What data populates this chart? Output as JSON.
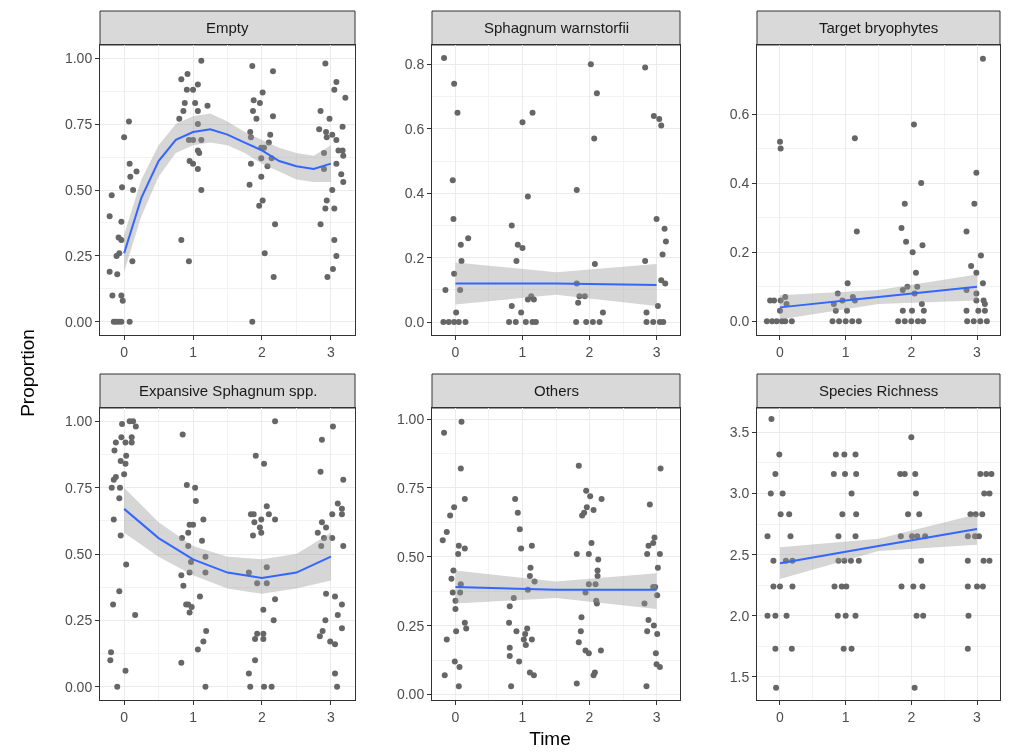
{
  "chart_data": [
    {
      "type": "scatter",
      "title": "Empty",
      "ylabel": "Proportion",
      "marker": "circle",
      "grid": true,
      "xlim": [
        -0.35,
        3.35
      ],
      "xticks": [
        0,
        1,
        2,
        3
      ],
      "ylim": [
        -0.05,
        1.05
      ],
      "yticks": [
        {
          "value": 0,
          "label": "0.00"
        },
        {
          "value": 0.25,
          "label": "0.25"
        },
        {
          "value": 0.5,
          "label": "0.50"
        },
        {
          "value": 0.75,
          "label": "0.75"
        },
        {
          "value": 1,
          "label": "1.00"
        }
      ],
      "series": [
        {
          "type": "scatter",
          "color": "#666666",
          "x": [
            -0.15,
            -0.12,
            -0.08,
            -0.04,
            0.08,
            -0.21,
            -0.18,
            -0.21,
            -0.17,
            -0.1,
            -0.11,
            -0.08,
            -0.04,
            -0.03,
            0,
            0.07,
            0.08,
            0.09,
            0.13,
            0.18,
            0.12,
            -0.07,
            -0.04,
            -0.02,
            -0.04,
            0.83,
            0.92,
            1.12,
            1.07,
            1,
            0.91,
            0.88,
            1.03,
            1.07,
            1.21,
            0.8,
            0.86,
            0.94,
            1,
            1.07,
            1.12,
            1.07,
            1.09,
            0.95,
            1,
            1.07,
            1.12,
            0.83,
            0.94,
            1.86,
            2.16,
            2.01,
            1.88,
            1.97,
            1.87,
            1.92,
            2.16,
            1.83,
            1.84,
            2.12,
            2.1,
            1.99,
            2.03,
            1.99,
            2.14,
            2.08,
            1.84,
            1.99,
            1.82,
            2.01,
            1.96,
            2.19,
            2.04,
            2.17,
            1.86,
            2.92,
            3.08,
            3.05,
            3.21,
            2.85,
            2.98,
            2.83,
            2.93,
            3.02,
            3.17,
            2.94,
            2.9,
            3.08,
            3.11,
            3.17,
            3.18,
            3.08,
            2.9,
            3.15,
            3.18,
            3.02,
            2.94,
            2.92,
            3.05,
            2.85,
            3.05,
            3.08,
            3.03,
            2.95
          ],
          "values": [
            0,
            0,
            0,
            0,
            0,
            0.4,
            0.48,
            0.19,
            0.1,
            0.18,
            0.25,
            0.32,
            0.38,
            0.51,
            0.7,
            0.76,
            0.6,
            0.55,
            0.5,
            0.57,
            0.23,
            0.26,
            0.1,
            0.08,
            0.31,
            0.92,
            0.94,
            0.99,
            0.9,
            0.88,
            0.88,
            0.83,
            0.83,
            0.8,
            0.82,
            0.77,
            0.8,
            0.69,
            0.69,
            0.75,
            0.69,
            0.65,
            0.64,
            0.61,
            0.6,
            0.58,
            0.5,
            0.31,
            0.23,
            0.97,
            0.95,
            0.87,
            0.84,
            0.83,
            0.8,
            0.77,
            0.78,
            0.72,
            0.7,
            0.71,
            0.68,
            0.66,
            0.66,
            0.62,
            0.62,
            0.59,
            0.6,
            0.55,
            0.52,
            0.46,
            0.44,
            0.37,
            0.26,
            0.17,
            0,
            0.98,
            0.91,
            0.88,
            0.85,
            0.8,
            0.77,
            0.73,
            0.72,
            0.71,
            0.74,
            0.7,
            0.64,
            0.69,
            0.65,
            0.65,
            0.63,
            0.6,
            0.58,
            0.56,
            0.53,
            0.5,
            0.46,
            0.43,
            0.43,
            0.37,
            0.31,
            0.25,
            0.2,
            0.17
          ]
        },
        {
          "type": "line",
          "marker": "none",
          "color": "#3366ff",
          "x": [
            0,
            0.25,
            0.5,
            0.75,
            1,
            1.25,
            1.5,
            1.75,
            2,
            2.25,
            2.5,
            2.75,
            3
          ],
          "values": [
            0.26,
            0.47,
            0.61,
            0.69,
            0.72,
            0.73,
            0.71,
            0.68,
            0.65,
            0.61,
            0.59,
            0.58,
            0.6
          ],
          "lower": [
            0.19,
            0.4,
            0.55,
            0.64,
            0.67,
            0.68,
            0.67,
            0.64,
            0.6,
            0.57,
            0.54,
            0.53,
            0.53
          ],
          "upper": [
            0.33,
            0.54,
            0.67,
            0.75,
            0.78,
            0.79,
            0.76,
            0.72,
            0.69,
            0.66,
            0.64,
            0.63,
            0.67
          ]
        }
      ]
    },
    {
      "type": "scatter",
      "title": "Sphagnum warnstorfii",
      "marker": "circle",
      "grid": true,
      "xlim": [
        -0.35,
        3.35
      ],
      "xticks": [
        0,
        1,
        2,
        3
      ],
      "ylim": [
        -0.04,
        0.86
      ],
      "yticks": [
        {
          "value": 0,
          "label": "0.0"
        },
        0.2,
        0.4,
        0.6,
        0.8
      ],
      "series": [
        {
          "type": "scatter",
          "color": "#666666",
          "x": [
            -0.17,
            -0.02,
            0.03,
            -0.04,
            -0.03,
            -0.15,
            -0.02,
            0.08,
            0.19,
            0.09,
            0.07,
            0.01,
            -0.18,
            -0.1,
            -0.02,
            0.05,
            0.15,
            0.84,
            0.93,
            1,
            0.91,
            1,
            1.15,
            1.08,
            0.84,
            0.98,
            1.08,
            1.13,
            1.17,
            0.8,
            0.9,
            1.05,
            1.15,
            1.2,
            1.81,
            2.02,
            2.11,
            2.07,
            2.08,
            1.81,
            1.85,
            1.83,
            1.93,
            2.2,
            1.8,
            1.95,
            2.05,
            2.15,
            2.83,
            2.96,
            3.04,
            3.07,
            3,
            2.83,
            3.09,
            3.07,
            3.02,
            2.85,
            3.12,
            3.14,
            3.13,
            2.85,
            2.95,
            3.05,
            3.1
          ],
          "values": [
            0.82,
            0.74,
            0.65,
            0.44,
            0.32,
            0.1,
            0.15,
            0.24,
            0.26,
            0.19,
            0.1,
            0.03,
            0,
            0,
            0,
            0,
            0,
            0.3,
            0.24,
            0.23,
            0.19,
            0.62,
            0.65,
            0.39,
            0.05,
            0.03,
            0.07,
            0.08,
            0.07,
            0,
            0,
            0,
            0,
            0,
            0.41,
            0.8,
            0.71,
            0.57,
            0.18,
            0.12,
            0.08,
            0.06,
            0.08,
            0.03,
            0,
            0,
            0,
            0,
            0.79,
            0.64,
            0.63,
            0.61,
            0.32,
            0.19,
            0.21,
            0.13,
            0.05,
            0.03,
            0.29,
            0.25,
            0.12,
            0,
            0,
            0,
            0
          ]
        },
        {
          "type": "line",
          "marker": "none",
          "color": "#3366ff",
          "x": [
            0,
            1.5,
            3
          ],
          "values": [
            0.12,
            0.12,
            0.115
          ],
          "lower": [
            0.055,
            0.085,
            0.05
          ],
          "upper": [
            0.185,
            0.155,
            0.18
          ]
        }
      ]
    },
    {
      "type": "scatter",
      "title": "Target bryophytes",
      "marker": "circle",
      "grid": true,
      "xlim": [
        -0.35,
        3.35
      ],
      "xticks": [
        0,
        1,
        2,
        3
      ],
      "ylim": [
        -0.04,
        0.8
      ],
      "yticks": [
        {
          "value": 0,
          "label": "0.0"
        },
        0.2,
        0.4,
        0.6
      ],
      "series": [
        {
          "type": "scatter",
          "color": "#666666",
          "x": [
            0,
            0.01,
            -0.15,
            -0.09,
            0.01,
            0.08,
            0.1,
            0,
            -0.2,
            -0.12,
            -0.05,
            0.03,
            0.08,
            0.18,
            1.14,
            1.17,
            1.03,
            0.88,
            0.82,
            0.85,
            1.02,
            1.11,
            1.14,
            0.95,
            0.8,
            0.9,
            1,
            1.1,
            1.2,
            2.04,
            2.15,
            1.9,
            1.85,
            1.92,
            2.17,
            2.02,
            2.07,
            1.87,
            1.94,
            2.09,
            2.05,
            2.16,
            1.87,
            2.01,
            2.19,
            1.8,
            1.9,
            2,
            2.1,
            2.18,
            3.09,
            2.99,
            2.96,
            2.84,
            2.91,
            3.06,
            2.99,
            3.09,
            2.84,
            2.99,
            2.99,
            3.1,
            3.12,
            2.84,
            3.02,
            3.12,
            2.85,
            2.95,
            3.05,
            3.15
          ],
          "values": [
            0.52,
            0.5,
            0.06,
            0.06,
            0.06,
            0.07,
            0.05,
            0.03,
            0,
            0,
            0,
            0,
            0,
            0,
            0.53,
            0.26,
            0.11,
            0.08,
            0.05,
            0.03,
            0.03,
            0.07,
            0.06,
            0.06,
            0,
            0,
            0,
            0,
            0,
            0.57,
            0.4,
            0.34,
            0.27,
            0.23,
            0.22,
            0.2,
            0.14,
            0.09,
            0.1,
            0.1,
            0.08,
            0.05,
            0.03,
            0.03,
            0.03,
            0,
            0,
            0,
            0,
            0,
            0.76,
            0.43,
            0.34,
            0.26,
            0.16,
            0.19,
            0.14,
            0.11,
            0.09,
            0.08,
            0.06,
            0.06,
            0.05,
            0.03,
            0.03,
            0.03,
            0,
            0,
            0,
            0
          ]
        },
        {
          "type": "line",
          "marker": "none",
          "color": "#3366ff",
          "x": [
            0,
            1.5,
            3
          ],
          "values": [
            0.04,
            0.07,
            0.1
          ],
          "lower": [
            0.005,
            0.05,
            0.06
          ],
          "upper": [
            0.075,
            0.09,
            0.135
          ]
        }
      ]
    },
    {
      "type": "scatter",
      "title": "Expansive Sphagnum spp.",
      "marker": "circle",
      "grid": true,
      "xlim": [
        -0.35,
        3.35
      ],
      "xticks": [
        0,
        1,
        2,
        3
      ],
      "ylim": [
        -0.05,
        1.05
      ],
      "yticks": [
        {
          "value": 0,
          "label": "0.00"
        },
        {
          "value": 0.25,
          "label": "0.25"
        },
        {
          "value": 0.5,
          "label": "0.50"
        },
        {
          "value": 0.75,
          "label": "0.75"
        },
        {
          "value": 1,
          "label": "1.00"
        }
      ],
      "series": [
        {
          "type": "scatter",
          "color": "#666666",
          "x": [
            -0.2,
            -0.19,
            -0.1,
            0.02,
            -0.16,
            -0.07,
            0.03,
            -0.05,
            -0.15,
            -0.07,
            -0.06,
            -0.18,
            -0.15,
            -0.12,
            0,
            -0.14,
            -0.05,
            0.03,
            0.02,
            -0.12,
            -0.04,
            0.02,
            0.11,
            0.11,
            -0.03,
            0.08,
            0.13,
            0.17,
            0.16,
            0.85,
            0.91,
            1.03,
            1.04,
            0.84,
            0.93,
            0.93,
            0.95,
            1,
            1.13,
            1.15,
            0.97,
            1.18,
            0.95,
            1.18,
            0.83,
            0.86,
            0.9,
            0.93,
            0.98,
            0.95,
            1.1,
            1.19,
            1.15,
            1.07,
            0.83,
            1.18,
            2.19,
            1.91,
            2.03,
            1.84,
            1.88,
            2.07,
            2.1,
            2.19,
            1.99,
            1.89,
            1.97,
            1.99,
            1.87,
            1.81,
            1.93,
            2.07,
            2.07,
            2.19,
            2.02,
            2.17,
            1.93,
            2.02,
            1.9,
            2.02,
            1.9,
            1.81,
            1.83,
            2.03,
            2.14,
            3.03,
            2.87,
            2.85,
            3.18,
            3.1,
            3.16,
            3.16,
            3.02,
            2.87,
            2.93,
            2.81,
            2.9,
            3.02,
            2.86,
            3.18,
            2.93,
            3.06,
            3.16,
            3.1,
            2.92,
            3.16,
            2.88,
            2.84,
            2.99,
            3.06,
            3.06,
            3.09
          ],
          "values": [
            0.1,
            0.13,
            0,
            0.06,
            0.31,
            0.36,
            0.46,
            0.57,
            0.63,
            0.71,
            0.75,
            0.75,
            0.78,
            0.79,
            0.8,
            0.89,
            0.85,
            0.87,
            0.84,
            0.92,
            0.94,
            0.92,
            0.94,
            0.92,
            0.99,
            1,
            1,
            0.98,
            0.27,
            0.95,
            0.76,
            0.75,
            0.7,
            0.56,
            0.53,
            0.58,
            0.61,
            0.61,
            0.55,
            0.63,
            0.47,
            0.49,
            0.43,
            0.43,
            0.42,
            0.38,
            0.31,
            0.31,
            0.3,
            0.28,
            0.34,
            0.21,
            0.17,
            0.14,
            0.09,
            0,
            1,
            0.87,
            0.84,
            0.65,
            0.65,
            0.68,
            0.65,
            0.63,
            0.63,
            0.62,
            0.6,
            0.58,
            0.57,
            0.43,
            0.39,
            0.45,
            0.39,
            0.33,
            0.29,
            0.25,
            0.2,
            0.2,
            0.18,
            0.18,
            0.1,
            0.05,
            0,
            0,
            0,
            0.98,
            0.93,
            0.81,
            0.78,
            0.69,
            0.67,
            0.65,
            0.65,
            0.62,
            0.6,
            0.58,
            0.56,
            0.56,
            0.53,
            0.53,
            0.35,
            0.34,
            0.31,
            0.27,
            0.25,
            0.22,
            0.21,
            0.19,
            0.17,
            0.16,
            0.05,
            0
          ]
        },
        {
          "type": "line",
          "marker": "none",
          "color": "#3366ff",
          "x": [
            0,
            0.5,
            1,
            1.5,
            2,
            2.5,
            3
          ],
          "values": [
            0.67,
            0.56,
            0.48,
            0.43,
            0.41,
            0.43,
            0.49
          ],
          "lower": [
            0.58,
            0.49,
            0.42,
            0.37,
            0.35,
            0.37,
            0.4
          ],
          "upper": [
            0.75,
            0.62,
            0.53,
            0.49,
            0.48,
            0.5,
            0.58
          ]
        }
      ]
    },
    {
      "type": "scatter",
      "title": "Others",
      "xlabel": "Time",
      "marker": "circle",
      "grid": true,
      "xlim": [
        -0.35,
        3.35
      ],
      "xticks": [
        0,
        1,
        2,
        3
      ],
      "ylim": [
        -0.02,
        1.04
      ],
      "yticks": [
        {
          "value": 0,
          "label": "0.00"
        },
        {
          "value": 0.25,
          "label": "0.25"
        },
        {
          "value": 0.5,
          "label": "0.50"
        },
        {
          "value": 0.75,
          "label": "0.75"
        },
        {
          "value": 1,
          "label": "1.00"
        }
      ],
      "series": [
        {
          "type": "scatter",
          "color": "#666666",
          "x": [
            -0.17,
            0.09,
            0.08,
            0.14,
            -0.02,
            -0.08,
            -0.13,
            -0.19,
            0.05,
            0.14,
            0.04,
            -0.03,
            -0.06,
            0.08,
            -0.04,
            0.07,
            0,
            0,
            0.14,
            0.16,
            0.01,
            -0.13,
            -0.01,
            0.06,
            -0.16,
            0.05,
            0.89,
            0.93,
            0.96,
            0.98,
            1.14,
            1.12,
            1.11,
            1.18,
            1.08,
            0.87,
            0.81,
            0.8,
            0.91,
            1.07,
            1.04,
            1.14,
            1.02,
            1.05,
            0.81,
            0.81,
            0.95,
            1.11,
            1.17,
            0.83,
            1.84,
            1.95,
            2.01,
            2.18,
            2.06,
            1.96,
            1.92,
            1.89,
            1.81,
            1.99,
            2.03,
            2.13,
            2.12,
            2.12,
            1.99,
            2.09,
            1.94,
            2.1,
            2.11,
            1.88,
            1.87,
            1.84,
            1.94,
            1.99,
            2.17,
            2.08,
            2.06,
            1.81,
            3.06,
            2.9,
            2.97,
            2.88,
            2.95,
            3.05,
            2.86,
            3.02,
            2.95,
            2.98,
            3.01,
            2.82,
            2.88,
            2.96,
            2.86,
            3.01,
            2.99,
            3,
            3.05,
            2.85
          ],
          "values": [
            0.95,
            0.99,
            0.82,
            0.71,
            0.68,
            0.65,
            0.59,
            0.56,
            0.54,
            0.53,
            0.51,
            0.45,
            0.42,
            0.4,
            0.37,
            0.37,
            0.34,
            0.31,
            0.26,
            0.24,
            0.23,
            0.2,
            0.12,
            0.1,
            0.07,
            0.03,
            0.71,
            0.66,
            0.6,
            0.53,
            0.54,
            0.46,
            0.43,
            0.41,
            0.38,
            0.35,
            0.32,
            0.26,
            0.23,
            0.24,
            0.22,
            0.2,
            0.2,
            0.18,
            0.17,
            0.14,
            0.12,
            0.08,
            0.07,
            0.03,
            0.83,
            0.74,
            0.72,
            0.71,
            0.67,
            0.68,
            0.66,
            0.65,
            0.51,
            0.51,
            0.55,
            0.49,
            0.45,
            0.43,
            0.4,
            0.4,
            0.37,
            0.34,
            0.33,
            0.28,
            0.23,
            0.19,
            0.16,
            0.15,
            0.16,
            0.08,
            0.07,
            0.04,
            0.82,
            0.69,
            0.57,
            0.54,
            0.55,
            0.51,
            0.51,
            0.46,
            0.39,
            0.39,
            0.36,
            0.33,
            0.27,
            0.25,
            0.23,
            0.22,
            0.15,
            0.11,
            0.1,
            0.03
          ]
        },
        {
          "type": "line",
          "marker": "none",
          "color": "#3366ff",
          "x": [
            0,
            1.5,
            3
          ],
          "values": [
            0.39,
            0.38,
            0.38
          ],
          "lower": [
            0.33,
            0.35,
            0.31
          ],
          "upper": [
            0.45,
            0.41,
            0.44
          ]
        }
      ]
    },
    {
      "type": "scatter",
      "title": "Species Richness",
      "marker": "circle",
      "grid": true,
      "xlim": [
        -0.35,
        3.35
      ],
      "xticks": [
        0,
        1,
        2,
        3
      ],
      "ylim": [
        1.31,
        3.7
      ],
      "yticks": [
        1.5,
        {
          "value": 2,
          "label": "2.0"
        },
        2.5,
        {
          "value": 3,
          "label": "3.0"
        },
        3.5
      ],
      "series": [
        {
          "type": "scatter",
          "color": "#666666",
          "x": [
            -0.13,
            -0.01,
            -0.07,
            -0.14,
            0.04,
            0.01,
            0.14,
            -0.19,
            0.16,
            -0.1,
            0.09,
            0.19,
            -0.1,
            0,
            0.19,
            -0.19,
            -0.07,
            0.1,
            -0.07,
            0.18,
            -0.06,
            0.85,
            0.98,
            1.15,
            0.82,
            0.99,
            1.16,
            1.09,
            0.95,
            1.16,
            0.89,
            1.15,
            0.89,
            0.98,
            1.08,
            1.2,
            0.83,
            0.94,
            1.01,
            0.88,
            1,
            1.15,
            0.97,
            1.09,
            2,
            1.83,
            1.9,
            2.06,
            2.07,
            1.95,
            2.12,
            1.84,
            2.01,
            2.09,
            2.21,
            2.15,
            1.85,
            2.03,
            2.17,
            2.08,
            2.18,
            2.05,
            3.05,
            3.14,
            3.22,
            3.11,
            3.19,
            2.9,
            2.98,
            3.08,
            2.86,
            2.97,
            3.03,
            2.86,
            3.1,
            3.19,
            2.86,
            3,
            3.09,
            2.87,
            2.86
          ],
          "values": [
            3.61,
            3.32,
            3.16,
            3,
            3,
            2.83,
            2.83,
            2.65,
            2.65,
            2.45,
            2.45,
            2.45,
            2.24,
            2.24,
            2.24,
            2,
            2,
            2,
            1.73,
            1.73,
            1.41,
            3.32,
            3.32,
            3.32,
            3.16,
            3.16,
            3.16,
            3,
            2.83,
            2.83,
            2.65,
            2.65,
            2.45,
            2.45,
            2.45,
            2.45,
            2.24,
            2.24,
            2.24,
            2,
            2,
            2,
            1.73,
            1.73,
            3.46,
            3.16,
            3.16,
            3.16,
            3,
            2.83,
            2.83,
            2.65,
            2.65,
            2.65,
            2.65,
            2.45,
            2.24,
            2.24,
            2.24,
            2,
            2,
            1.41,
            3.16,
            3.16,
            3.16,
            3,
            3,
            2.83,
            2.83,
            2.83,
            2.65,
            2.65,
            2.65,
            2.45,
            2.45,
            2.45,
            2.24,
            2.24,
            2.24,
            2,
            1.73
          ]
        },
        {
          "type": "line",
          "marker": "none",
          "color": "#3366ff",
          "x": [
            0,
            1.5,
            3
          ],
          "values": [
            2.43,
            2.57,
            2.71
          ],
          "lower": [
            2.3,
            2.53,
            2.58
          ],
          "upper": [
            2.56,
            2.63,
            2.83
          ]
        }
      ]
    }
  ]
}
